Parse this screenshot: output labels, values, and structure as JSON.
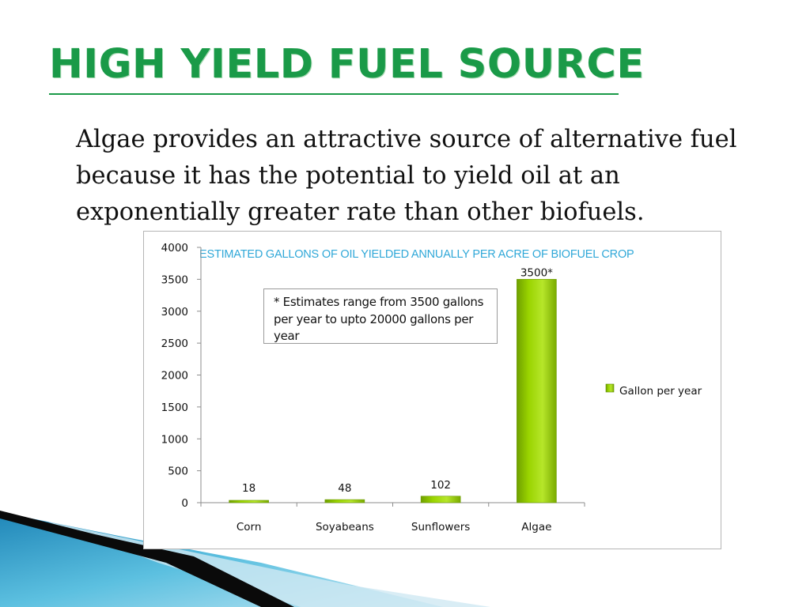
{
  "slide": {
    "title": "HIGH YIELD FUEL SOURCE",
    "body": "Algae provides an attractive source of alternative fuel because it has the potential to yield oil at an exponentially greater rate than other biofuels.",
    "title_color": "#1a9a48",
    "accent_color": "#1a9a48"
  },
  "chart_data": {
    "type": "bar",
    "title": "ESTIMATED GALLONS OF OIL YIELDED ANNUALLY PER ACRE OF BIOFUEL CROP",
    "categories": [
      "Corn",
      "Soyabeans",
      "Sunflowers",
      "Algae"
    ],
    "series": [
      {
        "name": "Gallon per year",
        "values": [
          18,
          48,
          102,
          3500
        ],
        "color": "#9ad400"
      }
    ],
    "data_labels": [
      "18",
      "48",
      "102",
      "3500*"
    ],
    "y_ticks": [
      "0",
      "500",
      "1000",
      "1500",
      "2000",
      "2500",
      "3000",
      "3500",
      "4000"
    ],
    "ylim": [
      0,
      4000
    ],
    "xlabel": "",
    "ylabel": "",
    "grid": false,
    "legend_position": "right",
    "title_color": "#30a8d8",
    "annotation": "* Estimates range from 3500 gallons per year to upto 20000 gallons per year"
  }
}
